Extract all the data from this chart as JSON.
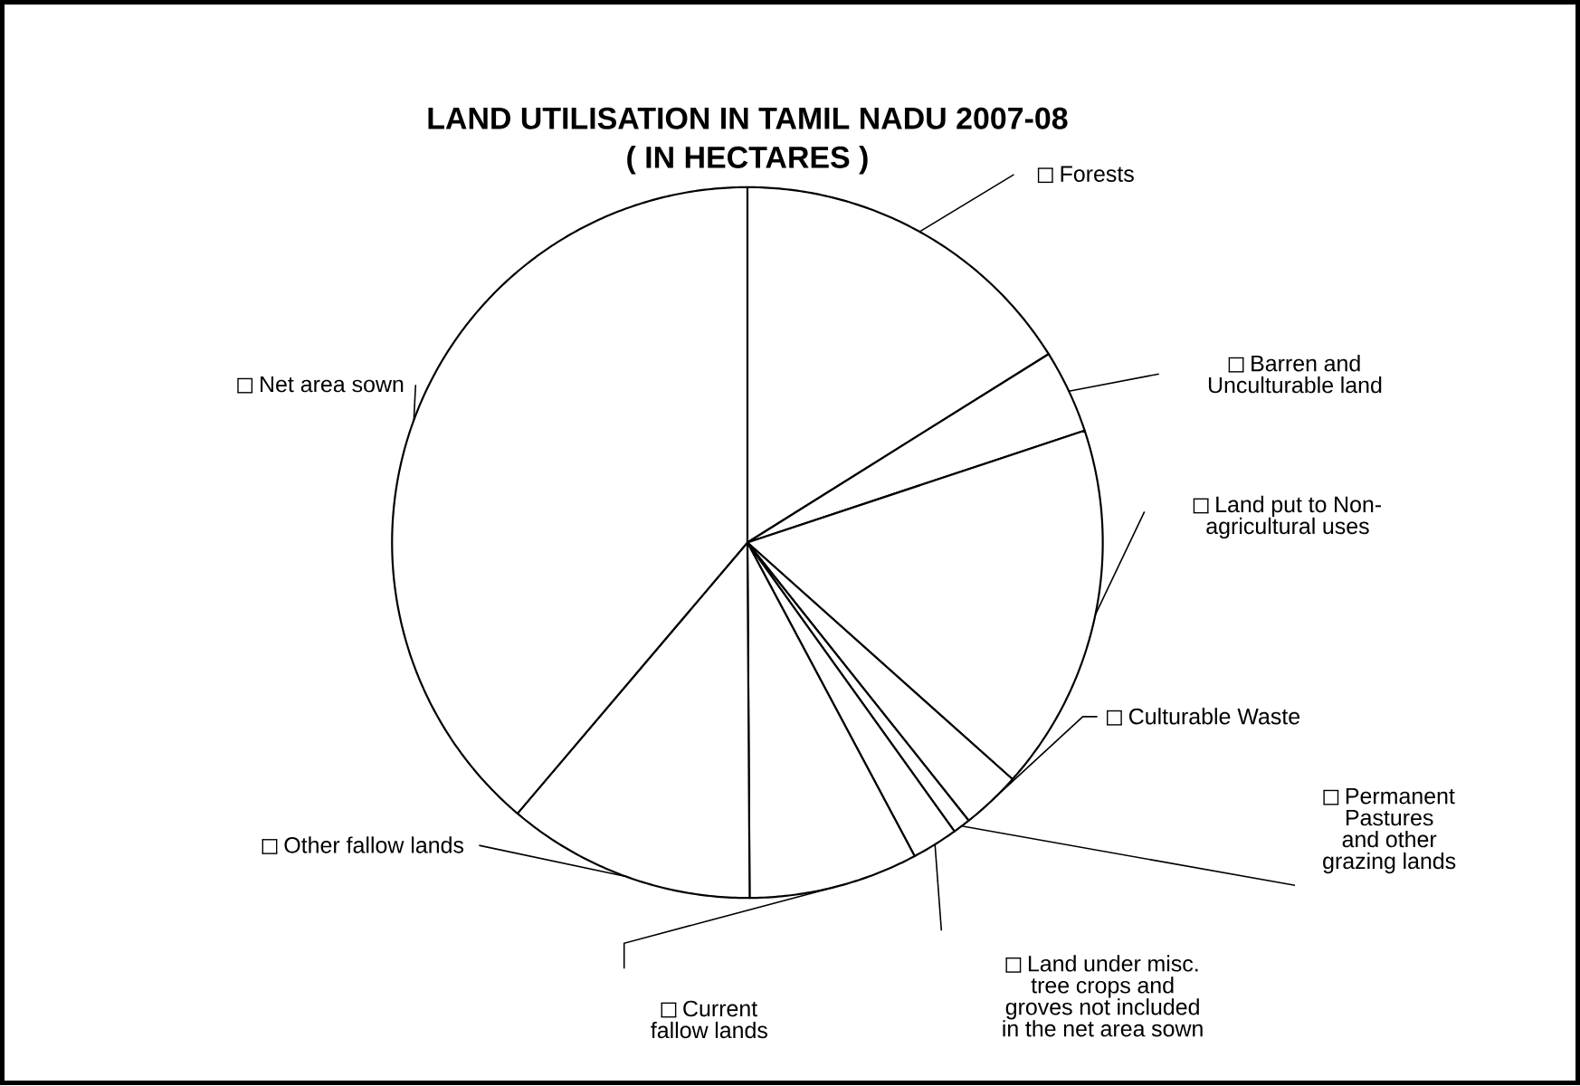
{
  "chart_data": {
    "type": "pie",
    "title": "LAND UTILISATION IN TAMIL NADU 2007-08",
    "subtitle": "( IN HECTARES )",
    "categories": [
      "Forests",
      "Barren and Unculturable land",
      "Land put to Non-agricultural uses",
      "Culturable Waste",
      "Permanent Pastures and other grazing lands",
      "Land under misc. tree crops and groves not included in the net area sown",
      "Current fallow lands",
      "Other fallow lands",
      "Net area sown"
    ],
    "values": [
      16.1,
      3.8,
      16.7,
      2.7,
      0.8,
      2.1,
      7.7,
      11.3,
      38.8
    ],
    "legend": "right",
    "colors": [
      "#ffffff",
      "#ffffff",
      "#ffffff",
      "#ffffff",
      "#ffffff",
      "#ffffff",
      "#ffffff",
      "#ffffff",
      "#ffffff"
    ]
  }
}
